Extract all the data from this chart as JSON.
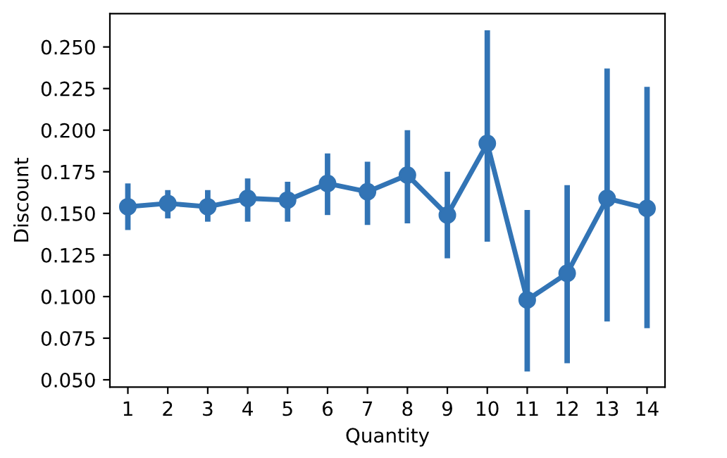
{
  "chart_data": {
    "type": "line",
    "xlabel": "Quantity",
    "ylabel": "Discount",
    "categories": [
      "1",
      "2",
      "3",
      "4",
      "5",
      "6",
      "7",
      "8",
      "9",
      "10",
      "11",
      "12",
      "13",
      "14"
    ],
    "series": [
      {
        "color": "#3274b5",
        "values": [
          0.154,
          0.156,
          0.154,
          0.159,
          0.158,
          0.168,
          0.163,
          0.173,
          0.149,
          0.192,
          0.098,
          0.114,
          0.159,
          0.153
        ],
        "errors": [
          [
            0.14,
            0.168
          ],
          [
            0.147,
            0.164
          ],
          [
            0.145,
            0.164
          ],
          [
            0.145,
            0.171
          ],
          [
            0.145,
            0.169
          ],
          [
            0.149,
            0.186
          ],
          [
            0.143,
            0.181
          ],
          [
            0.144,
            0.2
          ],
          [
            0.123,
            0.175
          ],
          [
            0.133,
            0.26
          ],
          [
            0.055,
            0.152
          ],
          [
            0.06,
            0.167
          ],
          [
            0.085,
            0.237
          ],
          [
            0.081,
            0.226
          ]
        ]
      }
    ],
    "ylim": [
      0.0456,
      0.27
    ],
    "yticks": [
      {
        "value": 0.05,
        "label": "0.050"
      },
      {
        "value": 0.075,
        "label": "0.075"
      },
      {
        "value": 0.1,
        "label": "0.100"
      },
      {
        "value": 0.125,
        "label": "0.125"
      },
      {
        "value": 0.15,
        "label": "0.150"
      },
      {
        "value": 0.175,
        "label": "0.175"
      },
      {
        "value": 0.2,
        "label": "0.200"
      },
      {
        "value": 0.225,
        "label": "0.225"
      },
      {
        "value": 0.25,
        "label": "0.250"
      }
    ],
    "marker": "circle",
    "line_style": "solid",
    "grid": false,
    "legend": false
  }
}
